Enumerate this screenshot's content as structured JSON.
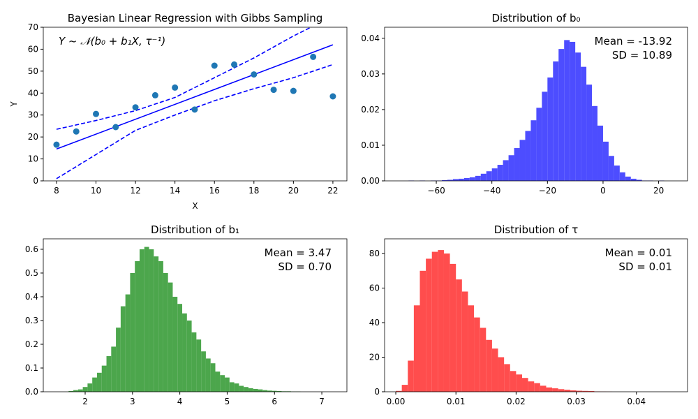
{
  "chart_data": [
    {
      "type": "scatter",
      "title": "Bayesian Linear Regression with Gibbs Sampling",
      "x": [
        8,
        9,
        10,
        11,
        12,
        13,
        14,
        15,
        16,
        17,
        18,
        19,
        20,
        21,
        22
      ],
      "y": [
        16.5,
        22.5,
        30.5,
        24.5,
        33.5,
        39,
        42.5,
        32.5,
        52.5,
        53,
        48.5,
        41.5,
        41,
        56.5,
        38.5
      ],
      "color": "#1f77b4",
      "lines": [
        {
          "x": [
            8,
            22
          ],
          "values": [
            14.5,
            62
          ],
          "color": "#0000ff",
          "linestyle": "solid"
        },
        {
          "x": [
            8,
            10,
            12,
            14,
            16,
            18,
            20,
            22
          ],
          "values": [
            23.5,
            27.5,
            32,
            38,
            47,
            56,
            66,
            75
          ],
          "color": "#0000ff",
          "linestyle": "dashed"
        },
        {
          "x": [
            8,
            10,
            12,
            14,
            16,
            18,
            20,
            22
          ],
          "values": [
            1,
            12,
            23,
            30,
            36.5,
            42,
            47,
            53
          ],
          "color": "#0000ff",
          "linestyle": "dashed"
        }
      ],
      "xlabel": "X",
      "ylabel": "Y",
      "xlim": [
        7.33,
        22.71
      ],
      "ylim": [
        0,
        70
      ],
      "xticks": [
        8,
        10,
        12,
        14,
        16,
        18,
        20,
        22
      ],
      "yticks": [
        0,
        10,
        20,
        30,
        40,
        50,
        60,
        70
      ],
      "annotations": [
        "Y ~ 𝒩(b₀ + b₁X, τ⁻¹)"
      ],
      "annotation_loc": "upper left"
    },
    {
      "type": "histogram",
      "title": "Distribution of b₀",
      "bins": [
        -72,
        -70,
        -68,
        -66,
        -64,
        -62,
        -60,
        -58,
        -56,
        -54,
        -52,
        -50,
        -48,
        -46,
        -44,
        -42,
        -40,
        -38,
        -36,
        -34,
        -32,
        -30,
        -28,
        -26,
        -24,
        -22,
        -20,
        -18,
        -16,
        -14,
        -12,
        -10,
        -8,
        -6,
        -4,
        -2,
        0,
        2,
        4,
        6,
        8,
        10,
        12,
        14,
        16,
        18,
        20,
        22,
        24
      ],
      "values": [
        0,
        0.0001,
        0,
        0.0001,
        0,
        0.0001,
        0.0001,
        0.0002,
        0.0003,
        0.0005,
        0.0006,
        0.0008,
        0.001,
        0.0014,
        0.002,
        0.0027,
        0.0035,
        0.0045,
        0.0058,
        0.0072,
        0.0092,
        0.0115,
        0.014,
        0.017,
        0.0205,
        0.025,
        0.029,
        0.0335,
        0.037,
        0.0395,
        0.039,
        0.036,
        0.032,
        0.027,
        0.021,
        0.0155,
        0.011,
        0.007,
        0.0043,
        0.0024,
        0.0012,
        0.0006,
        0.0003,
        0.0001,
        0.0001,
        0,
        0.0001,
        0
      ],
      "color": "#4d4dff",
      "xlim": [
        -78.6,
        30.4
      ],
      "ylim": [
        0,
        0.0431
      ],
      "xticks": [
        {
          "value": -60,
          "label": "−60"
        },
        {
          "value": -40,
          "label": "−40"
        },
        {
          "value": -20,
          "label": "−20"
        },
        0,
        20
      ],
      "yticks": [
        {
          "value": 0,
          "label": "0.00"
        },
        0.01,
        0.02,
        0.03,
        0.04
      ],
      "annotations": [
        "Mean = -13.92",
        "SD = 10.89"
      ],
      "annotation_loc": "upper right"
    },
    {
      "type": "histogram",
      "title": "Distribution of b₁",
      "bins": [
        1.65,
        1.75,
        1.85,
        1.95,
        2.05,
        2.15,
        2.25,
        2.35,
        2.45,
        2.55,
        2.65,
        2.75,
        2.85,
        2.95,
        3.05,
        3.15,
        3.25,
        3.35,
        3.45,
        3.55,
        3.65,
        3.75,
        3.85,
        3.95,
        4.05,
        4.15,
        4.25,
        4.35,
        4.45,
        4.55,
        4.65,
        4.75,
        4.85,
        4.95,
        5.05,
        5.15,
        5.25,
        5.35,
        5.45,
        5.55,
        5.65,
        5.75,
        5.85,
        5.95,
        6.05,
        6.15,
        6.25,
        6.35,
        6.45,
        6.55,
        6.65
      ],
      "values": [
        0.003,
        0.007,
        0.01,
        0.02,
        0.035,
        0.06,
        0.08,
        0.11,
        0.15,
        0.19,
        0.27,
        0.36,
        0.41,
        0.5,
        0.55,
        0.6,
        0.61,
        0.6,
        0.57,
        0.55,
        0.5,
        0.46,
        0.4,
        0.37,
        0.33,
        0.3,
        0.25,
        0.22,
        0.17,
        0.14,
        0.12,
        0.085,
        0.07,
        0.06,
        0.04,
        0.035,
        0.025,
        0.02,
        0.015,
        0.012,
        0.01,
        0.007,
        0.005,
        0.004,
        0.003,
        0.002,
        0.002,
        0.001,
        0.001,
        0
      ],
      "color": "#4ca64c",
      "xlim": [
        1.115,
        7.53
      ],
      "ylim": [
        0,
        0.644
      ],
      "xticks": [
        2,
        3,
        4,
        5,
        6,
        7
      ],
      "yticks": [
        {
          "value": 0,
          "label": "0.0"
        },
        0.1,
        0.2,
        0.3,
        0.4,
        0.5,
        0.6
      ],
      "annotations": [
        "Mean = 3.47",
        "SD = 0.70"
      ],
      "annotation_loc": "upper right"
    },
    {
      "type": "histogram",
      "title": "Distribution of τ",
      "bins": [
        0,
        0.001,
        0.002,
        0.003,
        0.004,
        0.005,
        0.006,
        0.007,
        0.008,
        0.009,
        0.01,
        0.011,
        0.012,
        0.013,
        0.014,
        0.015,
        0.016,
        0.017,
        0.018,
        0.019,
        0.02,
        0.021,
        0.022,
        0.023,
        0.024,
        0.025,
        0.026,
        0.027,
        0.028,
        0.029,
        0.03,
        0.031,
        0.032,
        0.033,
        0.034,
        0.035,
        0.036
      ],
      "values": [
        0.5,
        4,
        18,
        50,
        70,
        77,
        81,
        82,
        80,
        74,
        65,
        58,
        50,
        43,
        37,
        30,
        25,
        20,
        16,
        12,
        10,
        8,
        6,
        5,
        3.5,
        2.5,
        2,
        1.5,
        1.2,
        0.8,
        0.6,
        0.5,
        0.4,
        0.2,
        0.1,
        0.05
      ],
      "color": "#ff4d4d",
      "xlim": [
        -0.00186,
        0.0485
      ],
      "ylim": [
        0,
        88.5
      ],
      "xticks": [
        {
          "value": 0,
          "label": "0.00"
        },
        0.01,
        0.02,
        0.03,
        0.04
      ],
      "yticks": [
        0,
        20,
        40,
        60,
        80
      ],
      "annotations": [
        "Mean = 0.01",
        "SD = 0.01"
      ],
      "annotation_loc": "upper right"
    }
  ]
}
